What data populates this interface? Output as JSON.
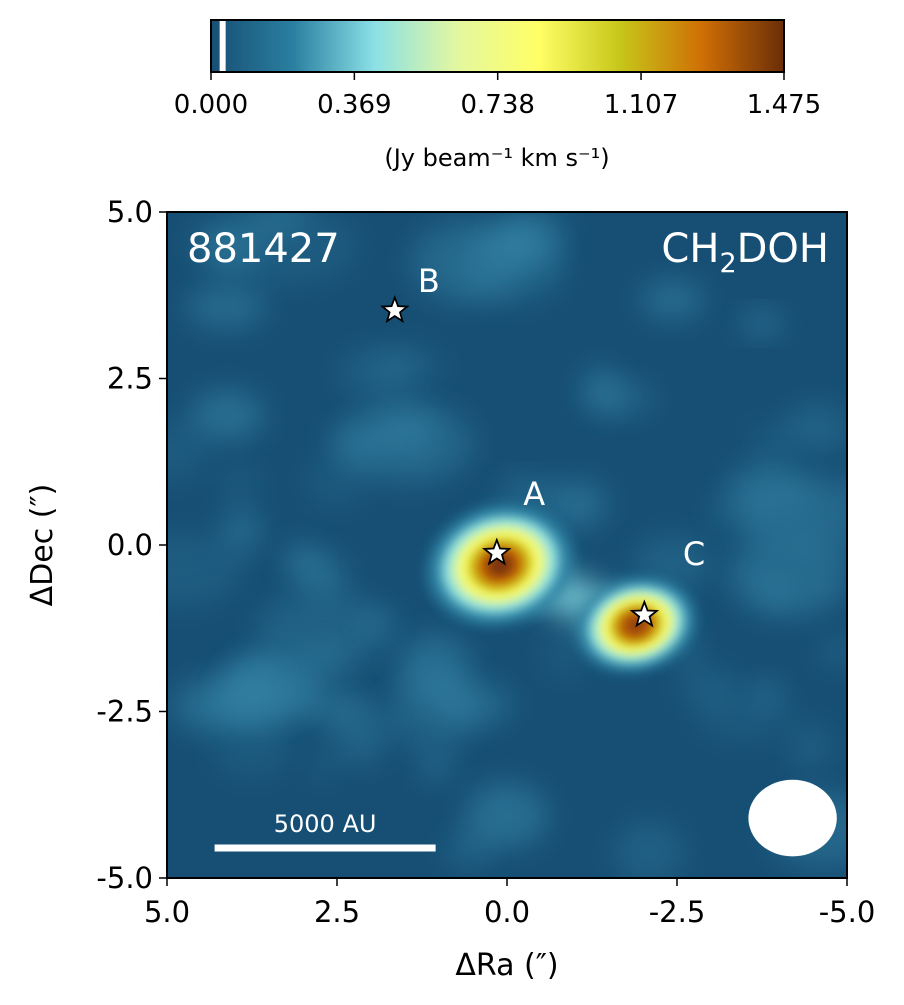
{
  "chart_data": {
    "type": "heatmap",
    "panel_label": "881427",
    "molecule": {
      "base": "CH",
      "sub": "2",
      "rest": "DOH"
    },
    "xlabel": "ΔRa (″)",
    "ylabel": "ΔDec (″)",
    "xlim": [
      5.0,
      -5.0
    ],
    "ylim": [
      -5.0,
      5.0
    ],
    "x_ticks": [
      5.0,
      2.5,
      0.0,
      -2.5,
      -5.0
    ],
    "x_tick_labels": [
      "5.0",
      "2.5",
      "0.0",
      "-2.5",
      "-5.0"
    ],
    "y_ticks": [
      5.0,
      2.5,
      0.0,
      -2.5,
      -5.0
    ],
    "y_tick_labels": [
      "5.0",
      "2.5",
      "0.0",
      "-2.5",
      "-5.0"
    ],
    "colorbar": {
      "label": "(Jy beam⁻¹ km s⁻¹)",
      "min": 0.0,
      "max": 1.475,
      "ticks": [
        0.0,
        0.369,
        0.738,
        1.107,
        1.475
      ],
      "tick_labels": [
        "0.000",
        "0.369",
        "0.738",
        "1.107",
        "1.475"
      ],
      "marker_value": 0.03,
      "stops": [
        "#174f74",
        "#2a7fa0",
        "#8be0e6",
        "#e3f7a0",
        "#ffff66",
        "#c6c61a",
        "#cf6f05",
        "#6b2e08"
      ]
    },
    "background_color": "#174f74",
    "sources": [
      {
        "name": "A",
        "x": 0.15,
        "y": -0.12,
        "label_x": -0.4,
        "label_y": 0.6
      },
      {
        "name": "B",
        "x": 1.65,
        "y": 3.52,
        "label_x": 1.15,
        "label_y": 3.8
      },
      {
        "name": "C",
        "x": -2.02,
        "y": -1.05,
        "label_x": -2.75,
        "label_y": -0.3
      }
    ],
    "emission_peaks": [
      {
        "x": 0.1,
        "y": -0.3,
        "peak": 1.475,
        "sx": 0.55,
        "sy": 0.45
      },
      {
        "x": -1.9,
        "y": -1.2,
        "peak": 1.2,
        "sx": 0.45,
        "sy": 0.35
      }
    ],
    "scalebar": {
      "label": "5000 AU",
      "x_start": 4.3,
      "x_end": 1.05,
      "y": -4.55
    },
    "beam": {
      "x": -4.2,
      "y": -4.1,
      "major": 1.3,
      "minor": 1.15
    }
  }
}
